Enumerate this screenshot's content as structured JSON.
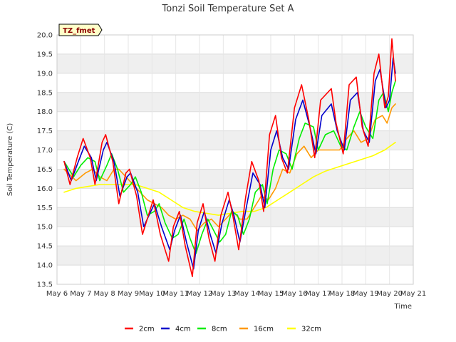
{
  "chart_data": {
    "type": "line",
    "title": "Tonzi Soil Temperature Set A",
    "xlabel": "Time",
    "ylabel": "Soil Temperature (C)",
    "badge": "TZ_fmet",
    "xlim": [
      6,
      21
    ],
    "ylim": [
      13.5,
      20.0
    ],
    "x_ticks": [
      {
        "value": 6,
        "label": "May 6"
      },
      {
        "value": 7,
        "label": "May 7"
      },
      {
        "value": 8,
        "label": "May 8"
      },
      {
        "value": 9,
        "label": "May 9"
      },
      {
        "value": 10,
        "label": "May 10"
      },
      {
        "value": 11,
        "label": "May 11"
      },
      {
        "value": 12,
        "label": "May 12"
      },
      {
        "value": 13,
        "label": "May 13"
      },
      {
        "value": 14,
        "label": "May 14"
      },
      {
        "value": 15,
        "label": "May 15"
      },
      {
        "value": 16,
        "label": "May 16"
      },
      {
        "value": 17,
        "label": "May 17"
      },
      {
        "value": 18,
        "label": "May 18"
      },
      {
        "value": 19,
        "label": "May 19"
      },
      {
        "value": 20,
        "label": "May 20"
      },
      {
        "value": 21,
        "label": "May 21"
      }
    ],
    "y_ticks": [
      {
        "value": 13.5,
        "label": "13.5"
      },
      {
        "value": 14.0,
        "label": "14.0"
      },
      {
        "value": 14.5,
        "label": "14.5"
      },
      {
        "value": 15.0,
        "label": "15.0"
      },
      {
        "value": 15.5,
        "label": "15.5"
      },
      {
        "value": 16.0,
        "label": "16.0"
      },
      {
        "value": 16.5,
        "label": "16.5"
      },
      {
        "value": 17.0,
        "label": "17.0"
      },
      {
        "value": 17.5,
        "label": "17.5"
      },
      {
        "value": 18.0,
        "label": "18.0"
      },
      {
        "value": 18.5,
        "label": "18.5"
      },
      {
        "value": 19.0,
        "label": "19.0"
      },
      {
        "value": 19.5,
        "label": "19.5"
      },
      {
        "value": 20.0,
        "label": "20.0"
      }
    ],
    "series": [
      {
        "name": "2cm",
        "color": "#ff0000",
        "x": [
          6.3,
          6.55,
          6.85,
          7.1,
          7.4,
          7.6,
          7.9,
          8.05,
          8.35,
          8.6,
          8.9,
          9.05,
          9.35,
          9.6,
          9.9,
          10.05,
          10.35,
          10.7,
          10.9,
          11.15,
          11.4,
          11.7,
          11.9,
          12.15,
          12.4,
          12.65,
          12.9,
          13.2,
          13.4,
          13.65,
          13.95,
          14.2,
          14.5,
          14.7,
          14.95,
          15.2,
          15.45,
          15.7,
          16.0,
          16.3,
          16.6,
          16.85,
          17.1,
          17.55,
          17.75,
          18.05,
          18.3,
          18.6,
          18.85,
          19.1,
          19.35,
          19.55,
          19.8,
          19.95,
          20.1,
          20.25
        ],
        "y": [
          16.7,
          16.1,
          16.8,
          17.3,
          16.8,
          16.1,
          17.2,
          17.4,
          16.7,
          15.6,
          16.4,
          16.5,
          15.8,
          14.8,
          15.4,
          15.7,
          14.8,
          14.1,
          15.0,
          15.4,
          14.5,
          13.7,
          15.1,
          15.6,
          14.7,
          14.1,
          15.3,
          15.9,
          15.3,
          14.4,
          15.8,
          16.7,
          16.2,
          15.4,
          17.4,
          17.9,
          16.8,
          16.4,
          18.1,
          18.7,
          17.8,
          16.8,
          18.3,
          18.6,
          17.7,
          16.9,
          18.7,
          18.9,
          17.6,
          17.1,
          19.0,
          19.5,
          18.1,
          18.4,
          19.9,
          18.8
        ]
      },
      {
        "name": "4cm",
        "color": "#0000cc",
        "x": [
          6.3,
          6.6,
          6.9,
          7.15,
          7.45,
          7.65,
          7.95,
          8.1,
          8.4,
          8.65,
          8.95,
          9.1,
          9.4,
          9.65,
          9.95,
          10.1,
          10.4,
          10.75,
          10.95,
          11.2,
          11.45,
          11.75,
          11.95,
          12.2,
          12.45,
          12.7,
          12.95,
          13.25,
          13.45,
          13.7,
          14.0,
          14.25,
          14.55,
          14.75,
          15.0,
          15.25,
          15.5,
          15.75,
          16.05,
          16.35,
          16.65,
          16.9,
          17.15,
          17.55,
          17.8,
          18.1,
          18.35,
          18.65,
          18.9,
          19.15,
          19.4,
          19.6,
          19.85,
          20.0,
          20.15,
          20.25
        ],
        "y": [
          16.7,
          16.2,
          16.7,
          17.1,
          16.8,
          16.2,
          17.0,
          17.2,
          16.7,
          15.8,
          16.3,
          16.4,
          15.9,
          15.0,
          15.4,
          15.6,
          15.0,
          14.4,
          14.9,
          15.3,
          14.6,
          13.9,
          14.9,
          15.4,
          14.8,
          14.3,
          15.1,
          15.7,
          15.3,
          14.6,
          15.6,
          16.4,
          16.1,
          15.5,
          17.0,
          17.5,
          16.8,
          16.5,
          17.8,
          18.3,
          17.6,
          16.9,
          17.9,
          18.2,
          17.5,
          17.0,
          18.3,
          18.5,
          17.5,
          17.2,
          18.8,
          19.1,
          18.1,
          18.3,
          19.4,
          19.0
        ]
      },
      {
        "name": "8cm",
        "color": "#00ee00",
        "x": [
          6.3,
          6.7,
          7.0,
          7.3,
          7.6,
          7.8,
          8.1,
          8.3,
          8.55,
          8.8,
          9.1,
          9.3,
          9.55,
          9.8,
          10.1,
          10.3,
          10.55,
          10.85,
          11.1,
          11.35,
          11.6,
          11.85,
          12.1,
          12.35,
          12.6,
          12.85,
          13.1,
          13.35,
          13.6,
          13.85,
          14.1,
          14.35,
          14.65,
          14.85,
          15.1,
          15.35,
          15.65,
          15.9,
          16.2,
          16.45,
          16.8,
          17.0,
          17.3,
          17.65,
          17.95,
          18.2,
          18.5,
          18.75,
          19.0,
          19.3,
          19.55,
          19.75,
          19.95,
          20.1,
          20.25
        ],
        "y": [
          16.7,
          16.3,
          16.6,
          16.8,
          16.7,
          16.2,
          16.6,
          16.9,
          16.5,
          15.9,
          16.1,
          16.3,
          15.9,
          15.3,
          15.4,
          15.6,
          15.1,
          14.7,
          14.8,
          15.2,
          14.7,
          14.3,
          14.8,
          15.2,
          14.9,
          14.6,
          14.8,
          15.4,
          15.3,
          14.8,
          15.2,
          15.9,
          16.1,
          15.6,
          16.5,
          17.0,
          16.9,
          16.5,
          17.3,
          17.7,
          17.6,
          17.0,
          17.4,
          17.5,
          17.1,
          17.0,
          17.6,
          18.0,
          17.6,
          17.3,
          18.3,
          18.5,
          18.0,
          18.5,
          18.8
        ]
      },
      {
        "name": "16cm",
        "color": "#ff9900",
        "x": [
          6.3,
          6.8,
          7.2,
          7.5,
          7.8,
          8.1,
          8.4,
          8.6,
          8.9,
          9.2,
          9.5,
          9.8,
          10.1,
          10.4,
          10.7,
          11.0,
          11.3,
          11.6,
          11.9,
          12.2,
          12.5,
          12.8,
          13.1,
          13.4,
          13.7,
          14.0,
          14.3,
          14.6,
          14.9,
          15.2,
          15.5,
          15.8,
          16.1,
          16.4,
          16.7,
          17.0,
          17.3,
          17.6,
          17.9,
          18.2,
          18.5,
          18.8,
          19.1,
          19.4,
          19.7,
          19.9,
          20.1,
          20.25
        ],
        "y": [
          16.5,
          16.2,
          16.4,
          16.5,
          16.3,
          16.2,
          16.5,
          16.5,
          16.3,
          16.1,
          15.9,
          15.7,
          15.6,
          15.5,
          15.3,
          15.2,
          15.3,
          15.2,
          14.9,
          15.1,
          15.2,
          15.0,
          15.2,
          15.4,
          15.2,
          15.2,
          15.5,
          15.8,
          15.7,
          16.0,
          16.5,
          16.4,
          16.9,
          17.1,
          16.8,
          17.0,
          17.0,
          17.0,
          17.0,
          17.3,
          17.5,
          17.2,
          17.3,
          17.8,
          17.9,
          17.7,
          18.1,
          18.2
        ]
      },
      {
        "name": "32cm",
        "color": "#ffff00",
        "x": [
          6.3,
          6.8,
          7.3,
          7.8,
          8.3,
          8.8,
          9.3,
          9.8,
          10.3,
          10.8,
          11.3,
          11.8,
          12.3,
          12.8,
          13.3,
          13.8,
          14.3,
          14.8,
          15.3,
          15.8,
          16.3,
          16.8,
          17.3,
          17.8,
          18.3,
          18.8,
          19.3,
          19.8,
          20.25
        ],
        "y": [
          15.9,
          16.0,
          16.05,
          16.1,
          16.1,
          16.1,
          16.1,
          16.0,
          15.9,
          15.7,
          15.5,
          15.4,
          15.35,
          15.3,
          15.35,
          15.4,
          15.4,
          15.5,
          15.7,
          15.9,
          16.1,
          16.3,
          16.45,
          16.55,
          16.65,
          16.75,
          16.85,
          17.0,
          17.2
        ]
      }
    ]
  }
}
